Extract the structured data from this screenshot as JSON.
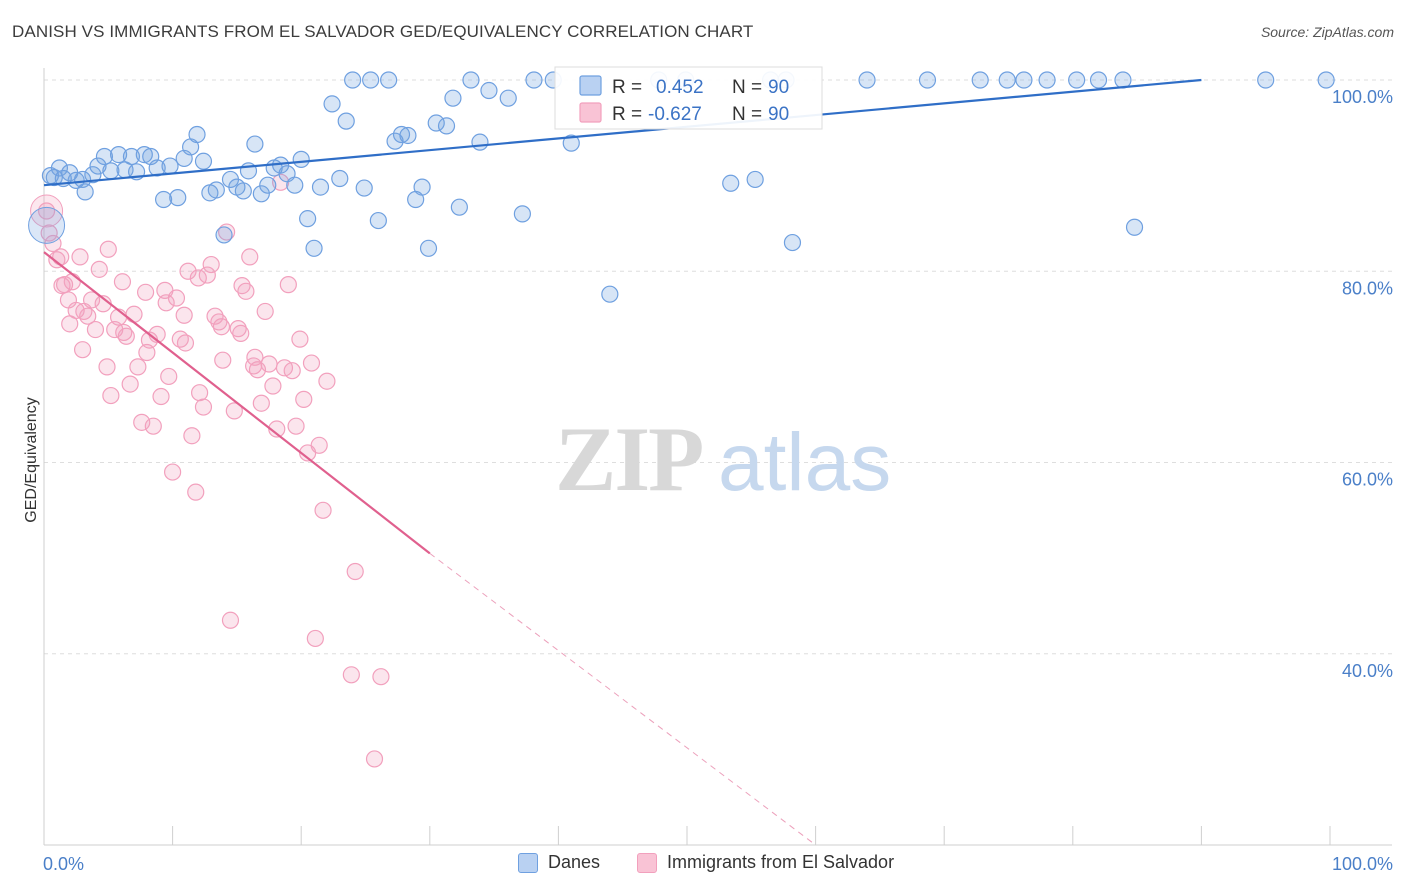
{
  "title": "DANISH VS IMMIGRANTS FROM EL SALVADOR GED/EQUIVALENCY CORRELATION CHART",
  "source": "Source: ZipAtlas.com",
  "watermark": {
    "zip": "ZIP",
    "atlas": "atlas"
  },
  "legend": {
    "r_label": "R =",
    "n_label": "N =",
    "danes": {
      "r": "0.452",
      "n": "90"
    },
    "salvador": {
      "r": "-0.627",
      "n": "90"
    }
  },
  "bottom_legend": {
    "danes": "Danes",
    "salvador": "Immigrants from El Salvador"
  },
  "chart_data": {
    "type": "scatter",
    "title": "DANISH VS IMMIGRANTS FROM EL SALVADOR GED/EQUIVALENCY CORRELATION CHART",
    "xlabel": "",
    "ylabel": "GED/Equivalency",
    "xlim": [
      0,
      100
    ],
    "ylim": [
      20,
      100
    ],
    "x_tick_labels": [
      "0.0%",
      "100.0%"
    ],
    "y_ticks": [
      40,
      60,
      80,
      100
    ],
    "y_tick_labels": [
      "40.0%",
      "60.0%",
      "80.0%",
      "100.0%"
    ],
    "grid": true,
    "legend_position": "top-center",
    "colors": {
      "danes": "#6fa0e0",
      "danes_line": "#2f6ec7",
      "salvador": "#f2a0bd",
      "salvador_line": "#e0608e"
    },
    "series": [
      {
        "name": "Danes",
        "r": 0.452,
        "n": 90,
        "trend": {
          "x": [
            0,
            90
          ],
          "y": [
            89.0,
            100.0
          ]
        },
        "points": [
          [
            0.5,
            90.0
          ],
          [
            0.8,
            89.8
          ],
          [
            1.2,
            90.8
          ],
          [
            1.5,
            89.7
          ],
          [
            2.0,
            90.3
          ],
          [
            2.5,
            89.5
          ],
          [
            3.0,
            89.6
          ],
          [
            3.2,
            88.3
          ],
          [
            3.8,
            90.1
          ],
          [
            4.2,
            91.0
          ],
          [
            4.7,
            92.0
          ],
          [
            5.2,
            90.5
          ],
          [
            5.8,
            92.2
          ],
          [
            6.3,
            90.6
          ],
          [
            6.8,
            92.0
          ],
          [
            7.2,
            90.4
          ],
          [
            7.8,
            92.2
          ],
          [
            8.3,
            92.0
          ],
          [
            8.8,
            90.8
          ],
          [
            9.3,
            87.5
          ],
          [
            9.8,
            91.0
          ],
          [
            10.4,
            87.7
          ],
          [
            10.9,
            91.8
          ],
          [
            11.4,
            93.0
          ],
          [
            11.9,
            94.3
          ],
          [
            12.4,
            91.5
          ],
          [
            12.9,
            88.2
          ],
          [
            13.4,
            88.5
          ],
          [
            14.0,
            83.8
          ],
          [
            14.5,
            89.6
          ],
          [
            15.0,
            88.8
          ],
          [
            15.5,
            88.4
          ],
          [
            15.9,
            90.5
          ],
          [
            16.4,
            93.3
          ],
          [
            16.9,
            88.1
          ],
          [
            17.4,
            89.0
          ],
          [
            17.9,
            90.8
          ],
          [
            18.4,
            91.1
          ],
          [
            18.9,
            90.2
          ],
          [
            19.5,
            89.0
          ],
          [
            20.0,
            91.7
          ],
          [
            20.5,
            85.5
          ],
          [
            21.0,
            82.4
          ],
          [
            21.5,
            88.8
          ],
          [
            22.4,
            97.5
          ],
          [
            23.0,
            89.7
          ],
          [
            23.5,
            95.7
          ],
          [
            24.0,
            100.0
          ],
          [
            24.9,
            88.7
          ],
          [
            25.4,
            100.0
          ],
          [
            26.0,
            85.3
          ],
          [
            26.8,
            100.0
          ],
          [
            27.3,
            93.6
          ],
          [
            27.8,
            94.3
          ],
          [
            28.3,
            94.2
          ],
          [
            28.9,
            87.5
          ],
          [
            29.4,
            88.8
          ],
          [
            29.9,
            82.4
          ],
          [
            30.5,
            95.5
          ],
          [
            31.3,
            95.2
          ],
          [
            31.8,
            98.1
          ],
          [
            32.3,
            86.7
          ],
          [
            33.2,
            100.0
          ],
          [
            33.9,
            93.5
          ],
          [
            34.6,
            98.9
          ],
          [
            36.1,
            98.1
          ],
          [
            37.2,
            86.0
          ],
          [
            38.1,
            100.0
          ],
          [
            39.6,
            100.0
          ],
          [
            41.0,
            93.4
          ],
          [
            44.0,
            77.6
          ],
          [
            47.8,
            100.0
          ],
          [
            49.9,
            100.0
          ],
          [
            53.4,
            89.2
          ],
          [
            55.3,
            89.6
          ],
          [
            56.5,
            100.0
          ],
          [
            57.7,
            100.0
          ],
          [
            58.2,
            83.0
          ],
          [
            64.0,
            100.0
          ],
          [
            68.7,
            100.0
          ],
          [
            72.8,
            100.0
          ],
          [
            74.9,
            100.0
          ],
          [
            76.2,
            100.0
          ],
          [
            78.0,
            100.0
          ],
          [
            80.3,
            100.0
          ],
          [
            82.0,
            100.0
          ],
          [
            83.9,
            100.0
          ],
          [
            84.8,
            84.6
          ],
          [
            95.0,
            100.0
          ],
          [
            99.7,
            100.0
          ]
        ]
      },
      {
        "name": "Immigrants from El Salvador",
        "r": -0.627,
        "n": 90,
        "trend": {
          "x": [
            0,
            30
          ],
          "y": [
            82.0,
            50.5
          ]
        },
        "trend_dashed": {
          "x": [
            30,
            60
          ],
          "y": [
            50.5,
            20.0
          ]
        },
        "points": [
          [
            0.2,
            86.3
          ],
          [
            0.4,
            84.0
          ],
          [
            0.7,
            82.9
          ],
          [
            1.0,
            81.2
          ],
          [
            1.3,
            81.5
          ],
          [
            1.6,
            78.6
          ],
          [
            1.9,
            77.0
          ],
          [
            2.2,
            78.9
          ],
          [
            2.5,
            75.9
          ],
          [
            2.8,
            81.5
          ],
          [
            3.1,
            75.8
          ],
          [
            3.4,
            75.3
          ],
          [
            3.7,
            77.0
          ],
          [
            4.0,
            73.9
          ],
          [
            4.3,
            80.2
          ],
          [
            4.6,
            76.6
          ],
          [
            4.9,
            70.0
          ],
          [
            5.2,
            67.0
          ],
          [
            5.5,
            73.9
          ],
          [
            5.8,
            75.2
          ],
          [
            6.1,
            78.9
          ],
          [
            6.4,
            73.2
          ],
          [
            6.7,
            68.2
          ],
          [
            7.0,
            75.5
          ],
          [
            7.3,
            70.0
          ],
          [
            7.6,
            64.2
          ],
          [
            7.9,
            77.8
          ],
          [
            8.2,
            72.8
          ],
          [
            8.5,
            63.8
          ],
          [
            8.8,
            73.4
          ],
          [
            9.1,
            66.9
          ],
          [
            9.4,
            78.0
          ],
          [
            9.7,
            69.0
          ],
          [
            10.0,
            59.0
          ],
          [
            10.3,
            77.2
          ],
          [
            10.6,
            72.9
          ],
          [
            10.9,
            75.4
          ],
          [
            11.2,
            80.0
          ],
          [
            11.5,
            62.8
          ],
          [
            11.8,
            56.9
          ],
          [
            12.1,
            67.3
          ],
          [
            12.4,
            65.8
          ],
          [
            12.7,
            79.6
          ],
          [
            13.0,
            80.7
          ],
          [
            13.3,
            75.3
          ],
          [
            13.6,
            74.7
          ],
          [
            13.9,
            70.7
          ],
          [
            14.2,
            84.1
          ],
          [
            14.5,
            43.5
          ],
          [
            14.8,
            65.4
          ],
          [
            15.1,
            74.0
          ],
          [
            15.4,
            78.5
          ],
          [
            15.7,
            77.9
          ],
          [
            16.0,
            81.5
          ],
          [
            16.3,
            70.1
          ],
          [
            16.6,
            69.7
          ],
          [
            16.9,
            66.2
          ],
          [
            17.2,
            75.8
          ],
          [
            17.5,
            70.3
          ],
          [
            17.8,
            68.0
          ],
          [
            18.1,
            63.5
          ],
          [
            18.4,
            89.3
          ],
          [
            18.7,
            69.9
          ],
          [
            19.0,
            78.6
          ],
          [
            19.3,
            69.6
          ],
          [
            19.6,
            63.8
          ],
          [
            19.9,
            72.9
          ],
          [
            20.2,
            66.6
          ],
          [
            20.5,
            61.0
          ],
          [
            20.8,
            70.4
          ],
          [
            21.1,
            41.6
          ],
          [
            21.4,
            61.8
          ],
          [
            21.7,
            55.0
          ],
          [
            22.0,
            68.5
          ],
          [
            23.9,
            37.8
          ],
          [
            24.2,
            48.6
          ],
          [
            25.7,
            29.0
          ],
          [
            26.2,
            37.6
          ],
          [
            1.4,
            78.5
          ],
          [
            2.0,
            74.5
          ],
          [
            3.0,
            71.8
          ],
          [
            5.0,
            82.3
          ],
          [
            6.2,
            73.6
          ],
          [
            8.0,
            71.5
          ],
          [
            9.5,
            76.7
          ],
          [
            11.0,
            72.5
          ],
          [
            12.0,
            79.3
          ],
          [
            13.8,
            74.2
          ],
          [
            15.3,
            73.5
          ],
          [
            16.4,
            71.0
          ]
        ]
      }
    ]
  }
}
